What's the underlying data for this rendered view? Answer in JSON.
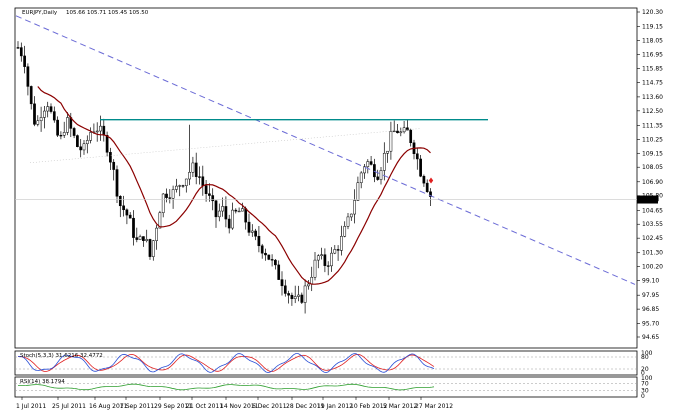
{
  "chart_data": {
    "type": "candlestick",
    "symbol_label": "EURJPY,Daily",
    "quote_label": "105.66 105.71 105.45 105.50",
    "current_price": "105.50",
    "y_ticks": [
      "120.30",
      "119.15",
      "118.05",
      "116.95",
      "115.85",
      "114.75",
      "113.60",
      "112.50",
      "111.35",
      "110.25",
      "109.15",
      "108.05",
      "106.90",
      "105.80",
      "104.65",
      "103.55",
      "102.45",
      "101.30",
      "100.20",
      "99.10",
      "97.95",
      "96.85",
      "95.70",
      "94.65"
    ],
    "x_ticks": [
      "1 Jul 2011",
      "25 Jul 2011",
      "16 Aug 2011",
      "7 Sep 2011",
      "29 Sep 2011",
      "21 Oct 2011",
      "14 Nov 2011",
      "6 Dec 2011",
      "28 Dec 2011",
      "19 Jan 2012",
      "10 Feb 2012",
      "5 Mar 2012",
      "27 Mar 2012"
    ],
    "ylim": [
      94.65,
      120.3
    ],
    "horizontal_resistance": 111.8,
    "stoch_label": "Stoch(5,3,3) 31.6216 32.4772",
    "stoch_ticks": [
      "100",
      "80",
      "20",
      "0"
    ],
    "rsi_label": "RSI(14) 38.1794",
    "rsi_ticks": [
      "100",
      "70",
      "30",
      "0"
    ],
    "colors": {
      "candle": "#000000",
      "ma": "#8b0000",
      "trend": "#6b6bd6",
      "resistance": "#008b8b",
      "stoch_main": "#2a4fd6",
      "stoch_signal": "#e02020",
      "rsi": "#2e9e2e",
      "marker": "#e02020"
    }
  }
}
